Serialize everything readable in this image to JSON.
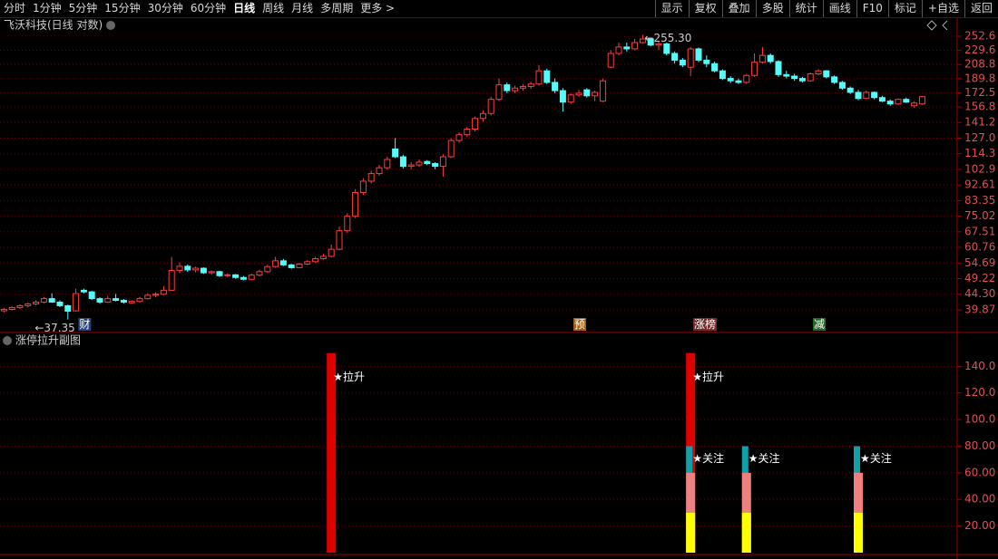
{
  "toolbar": {
    "left": [
      "分时",
      "1分钟",
      "5分钟",
      "15分钟",
      "30分钟",
      "60分钟",
      "日线",
      "周线",
      "月线",
      "多周期",
      "更多 >"
    ],
    "right": [
      "显示",
      "复权",
      "叠加",
      "多股",
      "统计",
      "画线",
      "F10",
      "标记",
      "+自选",
      "返回"
    ],
    "active_index": 6
  },
  "chart_data": [
    {
      "type": "candlestick",
      "title": "飞沃科技(日线 对数)",
      "log_scale": true,
      "grid": true,
      "up_color": "#ff3c3c",
      "down_color": "#54fcfc",
      "ylim": [
        37.5,
        278.6
      ],
      "yticks": [
        252.6,
        229.6,
        208.8,
        189.8,
        172.5,
        156.8,
        141.2,
        {
          "value": 127,
          "label": "127.0"
        },
        114.3,
        102.9,
        92.61,
        83.35,
        75.02,
        67.51,
        60.76,
        54.69,
        49.22,
        {
          "value": 44.3,
          "label": "44.30"
        },
        39.87
      ],
      "open": [
        39.6,
        40.0,
        40.5,
        41.0,
        41.5,
        42.0,
        43.0,
        42.0,
        41.0,
        39.6,
        45.5,
        45.0,
        43.0,
        42.0,
        43.0,
        42.5,
        41.8,
        42.2,
        43.0,
        44.0,
        44.3,
        45.5,
        52.0,
        53.5,
        52.2,
        52.8,
        51.2,
        51.6,
        50.2,
        50.5,
        49.6,
        49.0,
        50.4,
        51.6,
        53.4,
        55.5,
        54.0,
        53.0,
        54.3,
        55.2,
        56.3,
        57.2,
        60.0,
        68.0,
        75.0,
        88.0,
        95.0,
        100.0,
        104.0,
        118.0,
        112.0,
        105.0,
        106.0,
        108.5,
        107.0,
        105.0,
        112.0,
        125.0,
        130.0,
        135.0,
        145.0,
        150.0,
        165.0,
        182.0,
        175.0,
        178.0,
        180.0,
        183.0,
        200.0,
        185.0,
        175.0,
        162.0,
        170.0,
        176.0,
        169.0,
        163.0,
        205.0,
        225.0,
        235.0,
        232.0,
        242.0,
        248.0,
        238.0,
        240.0,
        225.0,
        215.0,
        205.0,
        232.0,
        215.0,
        210.0,
        200.0,
        190.0,
        187.0,
        185.0,
        194.0,
        212.0,
        222.0,
        213.0,
        195.0,
        193.0,
        190.0,
        187.0,
        196.0,
        200.0,
        192.0,
        185.0,
        178.0,
        173.0,
        166.0,
        173.0,
        167.0,
        163.0,
        160.0,
        165.0,
        158.0,
        160.0
      ],
      "high": [
        40.4,
        40.8,
        41.4,
        41.9,
        42.6,
        43.5,
        44.6,
        42.5,
        41.3,
        46.0,
        46.0,
        45.3,
        43.4,
        43.8,
        44.4,
        42.9,
        42.5,
        43.5,
        44.6,
        44.9,
        46.8,
        57.0,
        55.0,
        54.2,
        53.4,
        53.1,
        52.0,
        51.9,
        51.0,
        50.8,
        50.1,
        50.9,
        52.2,
        54.0,
        57.0,
        56.2,
        54.4,
        54.8,
        55.8,
        57.0,
        58.2,
        62.0,
        70.0,
        76.5,
        90.0,
        97.0,
        102.0,
        106.0,
        112.0,
        127.0,
        113.5,
        108.0,
        110.0,
        109.5,
        108.0,
        114.0,
        127.0,
        132.0,
        137.0,
        147.0,
        153.0,
        168.0,
        190.0,
        185.0,
        181.0,
        183.0,
        186.0,
        208.0,
        203.0,
        190.0,
        178.0,
        172.0,
        176.0,
        178.0,
        175.0,
        190.0,
        230.0,
        242.0,
        242.0,
        248.0,
        255.3,
        250.0,
        245.0,
        242.0,
        228.0,
        218.0,
        235.0,
        234.0,
        222.0,
        213.0,
        202.0,
        193.0,
        190.0,
        196.0,
        225.0,
        235.0,
        225.0,
        215.0,
        200.0,
        196.0,
        192.0,
        198.0,
        202.0,
        201.0,
        194.0,
        187.0,
        180.0,
        176.0,
        175.0,
        174.0,
        169.0,
        165.0,
        166.0,
        167.0,
        163.0,
        169.0
      ],
      "low": [
        39.2,
        39.7,
        40.1,
        40.6,
        41.1,
        41.7,
        41.8,
        40.6,
        37.35,
        39.4,
        44.6,
        42.6,
        41.5,
        41.8,
        42.2,
        41.6,
        41.5,
        41.9,
        42.8,
        43.4,
        44.0,
        45.3,
        51.0,
        51.5,
        51.3,
        50.8,
        50.5,
        49.8,
        49.7,
        49.2,
        48.7,
        48.6,
        50.0,
        51.2,
        53.0,
        53.6,
        52.6,
        52.8,
        53.9,
        54.8,
        55.9,
        56.8,
        59.6,
        67.0,
        74.0,
        86.5,
        93.5,
        98.5,
        102.5,
        111.0,
        103.5,
        103.0,
        104.5,
        106.0,
        103.0,
        98.0,
        111.0,
        123.0,
        128.0,
        133.0,
        142.0,
        148.0,
        163.0,
        172.0,
        172.0,
        175.0,
        177.0,
        181.0,
        183.0,
        172.0,
        152.0,
        160.0,
        168.0,
        167.0,
        163.0,
        162.0,
        204.0,
        222.0,
        228.0,
        230.0,
        240.0,
        236.0,
        230.0,
        222.0,
        210.0,
        205.0,
        193.0,
        212.0,
        205.0,
        198.0,
        188.0,
        184.0,
        183.0,
        183.0,
        192.0,
        210.0,
        210.0,
        192.0,
        190.0,
        187.0,
        185.0,
        186.0,
        194.0,
        190.0,
        183.0,
        176.0,
        171.0,
        164.0,
        165.0,
        165.0,
        162.0,
        158.0,
        159.0,
        161.0,
        156.0,
        159.0
      ],
      "close": [
        40.0,
        40.5,
        41.0,
        41.5,
        42.0,
        43.0,
        42.0,
        41.0,
        39.5,
        44.5,
        45.0,
        43.0,
        42.0,
        43.0,
        42.5,
        42.0,
        42.2,
        43.0,
        44.0,
        44.3,
        45.5,
        52.0,
        53.5,
        52.2,
        52.8,
        51.2,
        51.6,
        50.2,
        50.5,
        49.6,
        49.0,
        50.4,
        51.6,
        53.4,
        55.5,
        54.0,
        53.0,
        54.3,
        55.2,
        56.3,
        57.2,
        60.0,
        68.0,
        75.0,
        88.0,
        95.0,
        100.0,
        104.0,
        110.0,
        112.0,
        105.0,
        106.0,
        108.0,
        107.0,
        105.0,
        112.0,
        125.0,
        130.0,
        135.0,
        145.0,
        150.0,
        165.0,
        182.0,
        175.0,
        178.0,
        180.0,
        183.0,
        200.0,
        185.0,
        175.0,
        162.0,
        170.0,
        172.0,
        169.0,
        173.0,
        187.0,
        225.0,
        235.0,
        232.0,
        242.0,
        248.0,
        238.0,
        240.0,
        225.0,
        215.0,
        208.0,
        232.0,
        215.0,
        210.0,
        200.0,
        190.0,
        187.0,
        185.0,
        194.0,
        212.0,
        222.0,
        213.0,
        195.0,
        193.0,
        190.0,
        187.0,
        196.0,
        200.0,
        192.0,
        185.0,
        178.0,
        173.0,
        166.0,
        173.0,
        167.0,
        163.0,
        160.0,
        165.0,
        162.0,
        161.0,
        168.0
      ],
      "extremes": [
        {
          "label": "←255.30",
          "value": 255.3
        },
        {
          "label": "←37.35",
          "value": 37.35
        }
      ],
      "events": [
        null,
        null,
        null,
        null,
        null,
        null,
        null,
        null,
        null,
        null,
        {
          "label": "财",
          "color": "#2a4f9a"
        },
        null,
        null,
        null,
        null,
        null,
        null,
        null,
        null,
        null,
        null,
        null,
        null,
        null,
        null,
        null,
        null,
        null,
        null,
        null,
        null,
        null,
        null,
        null,
        null,
        null,
        null,
        null,
        null,
        null,
        null,
        null,
        null,
        null,
        null,
        null,
        null,
        null,
        null,
        null,
        null,
        null,
        null,
        null,
        null,
        null,
        null,
        null,
        null,
        null,
        null,
        null,
        null,
        null,
        null,
        null,
        null,
        null,
        null,
        null,
        null,
        null,
        {
          "label": "预",
          "color": "#c07020"
        },
        null,
        null,
        null,
        null,
        null,
        null,
        null,
        null,
        null,
        null,
        null,
        null,
        null,
        null,
        {
          "label": "涨榜",
          "color": "#8a3030"
        },
        null,
        null,
        null,
        null,
        null,
        null,
        null,
        null,
        null,
        null,
        null,
        null,
        null,
        null,
        {
          "label": "减",
          "color": "#2a7a2a"
        },
        null,
        null,
        null,
        null,
        null,
        null,
        null,
        null,
        null,
        null,
        null,
        null,
        null
      ]
    },
    {
      "type": "overlay_bar",
      "title": "涨停拉升副图",
      "grid": true,
      "ylim": [
        0,
        162
      ],
      "yticks": [
        {
          "value": 140,
          "label": "140.0"
        },
        {
          "value": 120,
          "label": "120.0"
        },
        {
          "value": 100,
          "label": "100.0"
        },
        {
          "value": 80,
          "label": "80.00"
        },
        {
          "value": 60,
          "label": "60.00"
        },
        {
          "value": 40,
          "label": "40.00"
        },
        {
          "value": 20,
          "label": "20.00"
        }
      ],
      "series": [
        {
          "color": "#e00000",
          "marker_text": "★拉升",
          "values": [
            null,
            null,
            null,
            null,
            null,
            null,
            null,
            null,
            null,
            null,
            null,
            null,
            null,
            null,
            null,
            null,
            null,
            null,
            null,
            null,
            null,
            null,
            null,
            null,
            null,
            null,
            null,
            null,
            null,
            null,
            null,
            null,
            null,
            null,
            null,
            null,
            null,
            null,
            null,
            null,
            null,
            150,
            null,
            null,
            null,
            null,
            null,
            null,
            null,
            null,
            null,
            null,
            null,
            null,
            null,
            null,
            null,
            null,
            null,
            null,
            null,
            null,
            null,
            null,
            null,
            null,
            null,
            null,
            null,
            null,
            null,
            null,
            null,
            null,
            null,
            null,
            null,
            null,
            null,
            null,
            null,
            null,
            null,
            null,
            null,
            null,
            150,
            null,
            null,
            null,
            null,
            null,
            null,
            null,
            null,
            null,
            null,
            null,
            null,
            null,
            null,
            null,
            null,
            null,
            null,
            null,
            null,
            null,
            null,
            null,
            null,
            null,
            null,
            null,
            null,
            null
          ]
        },
        {
          "color": "#10a0a8",
          "marker_text": "★关注",
          "values": [
            null,
            null,
            null,
            null,
            null,
            null,
            null,
            null,
            null,
            null,
            null,
            null,
            null,
            null,
            null,
            null,
            null,
            null,
            null,
            null,
            null,
            null,
            null,
            null,
            null,
            null,
            null,
            null,
            null,
            null,
            null,
            null,
            null,
            null,
            null,
            null,
            null,
            null,
            null,
            null,
            null,
            null,
            null,
            null,
            null,
            null,
            null,
            null,
            null,
            null,
            null,
            null,
            null,
            null,
            null,
            null,
            null,
            null,
            null,
            null,
            null,
            null,
            null,
            null,
            null,
            null,
            null,
            null,
            null,
            null,
            null,
            null,
            null,
            null,
            null,
            null,
            null,
            null,
            null,
            null,
            null,
            null,
            null,
            null,
            null,
            null,
            80,
            null,
            null,
            null,
            null,
            null,
            null,
            80,
            null,
            null,
            null,
            null,
            null,
            null,
            null,
            null,
            null,
            null,
            null,
            null,
            null,
            80,
            null,
            null,
            null,
            null,
            null,
            null,
            null,
            null
          ]
        },
        {
          "color": "#f08080",
          "values": [
            null,
            null,
            null,
            null,
            null,
            null,
            null,
            null,
            null,
            null,
            null,
            null,
            null,
            null,
            null,
            null,
            null,
            null,
            null,
            null,
            null,
            null,
            null,
            null,
            null,
            null,
            null,
            null,
            null,
            null,
            null,
            null,
            null,
            null,
            null,
            null,
            null,
            null,
            null,
            null,
            null,
            null,
            null,
            null,
            null,
            null,
            null,
            null,
            null,
            null,
            null,
            null,
            null,
            null,
            null,
            null,
            null,
            null,
            null,
            null,
            null,
            null,
            null,
            null,
            null,
            null,
            null,
            null,
            null,
            null,
            null,
            null,
            null,
            null,
            null,
            null,
            null,
            null,
            null,
            null,
            null,
            null,
            null,
            null,
            null,
            null,
            60,
            null,
            null,
            null,
            null,
            null,
            null,
            60,
            null,
            null,
            null,
            null,
            null,
            null,
            null,
            null,
            null,
            null,
            null,
            null,
            null,
            60,
            null,
            null,
            null,
            null,
            null,
            null,
            null,
            null
          ]
        },
        {
          "color": "#ffff00",
          "values": [
            null,
            null,
            null,
            null,
            null,
            null,
            null,
            null,
            null,
            null,
            null,
            null,
            null,
            null,
            null,
            null,
            null,
            null,
            null,
            null,
            null,
            null,
            null,
            null,
            null,
            null,
            null,
            null,
            null,
            null,
            null,
            null,
            null,
            null,
            null,
            null,
            null,
            null,
            null,
            null,
            null,
            null,
            null,
            null,
            null,
            null,
            null,
            null,
            null,
            null,
            null,
            null,
            null,
            null,
            null,
            null,
            null,
            null,
            null,
            null,
            null,
            null,
            null,
            null,
            null,
            null,
            null,
            null,
            null,
            null,
            null,
            null,
            null,
            null,
            null,
            null,
            null,
            null,
            null,
            null,
            null,
            null,
            null,
            null,
            null,
            null,
            30,
            null,
            null,
            null,
            null,
            null,
            null,
            30,
            null,
            null,
            null,
            null,
            null,
            null,
            null,
            null,
            null,
            null,
            null,
            null,
            null,
            30,
            null,
            null,
            null,
            null,
            null,
            null,
            null,
            null
          ]
        }
      ]
    }
  ]
}
